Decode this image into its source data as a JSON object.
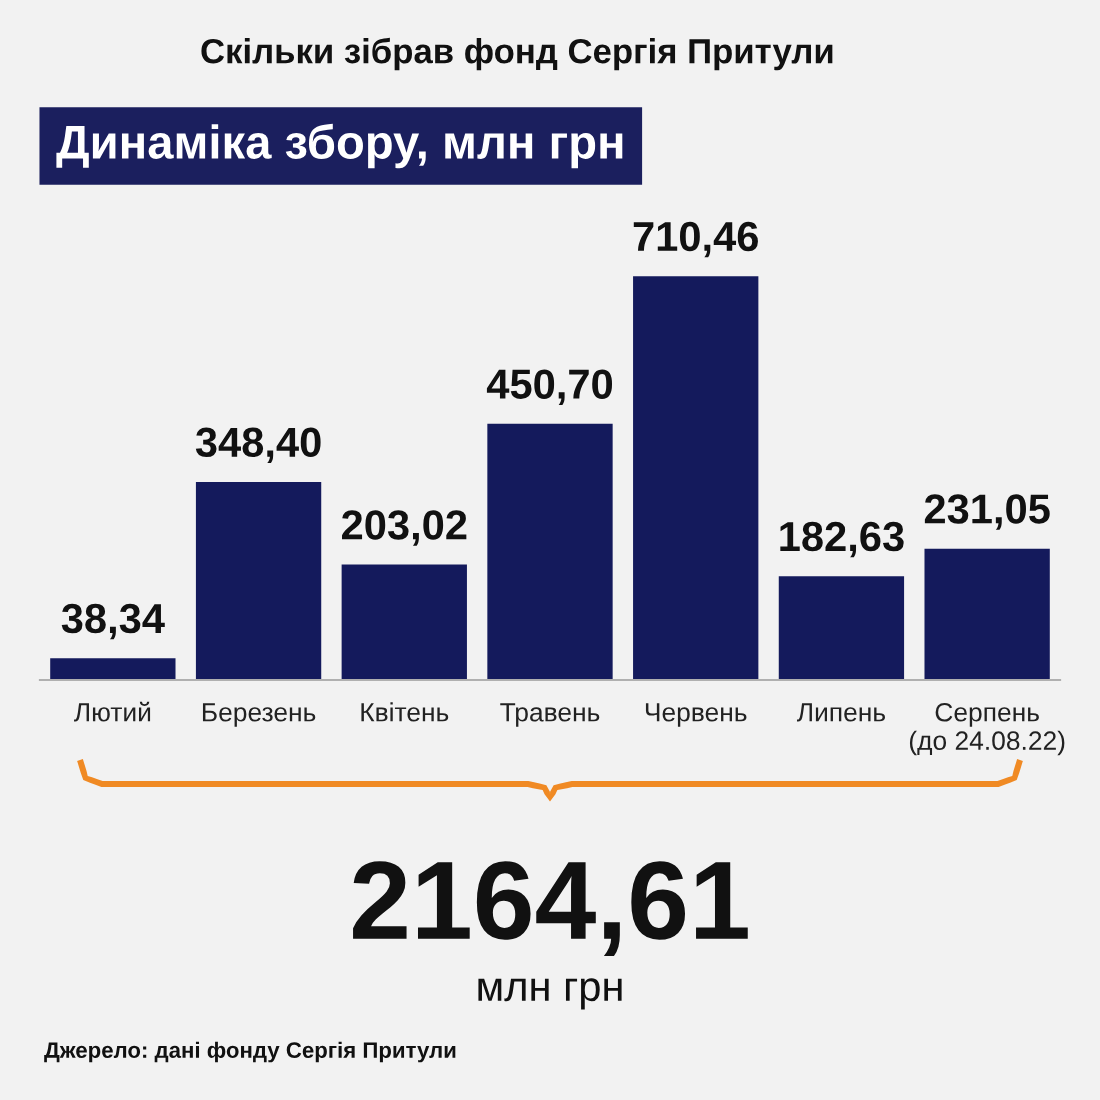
{
  "chart_data": {
    "type": "bar",
    "subtitle": "Скільки зібрав фонд Сергія Притули",
    "title": "Динаміка збору, млн грн",
    "categories": [
      "Лютий",
      "Березень",
      "Квітень",
      "Травень",
      "Червень",
      "Липень",
      "Серпень\n(до 24.08.22)"
    ],
    "values": [
      38.34,
      348.4,
      203.02,
      450.7,
      710.46,
      182.63,
      231.05
    ],
    "value_labels": [
      "38,34",
      "348,40",
      "203,02",
      "450,70",
      "710,46",
      "182,63",
      "231,05"
    ],
    "color": "#141a5c",
    "annotations": [
      "2164,61",
      "млн грн",
      "Джерело: дані фонду Сергія Притули"
    ],
    "grid": false,
    "legend": false
  }
}
